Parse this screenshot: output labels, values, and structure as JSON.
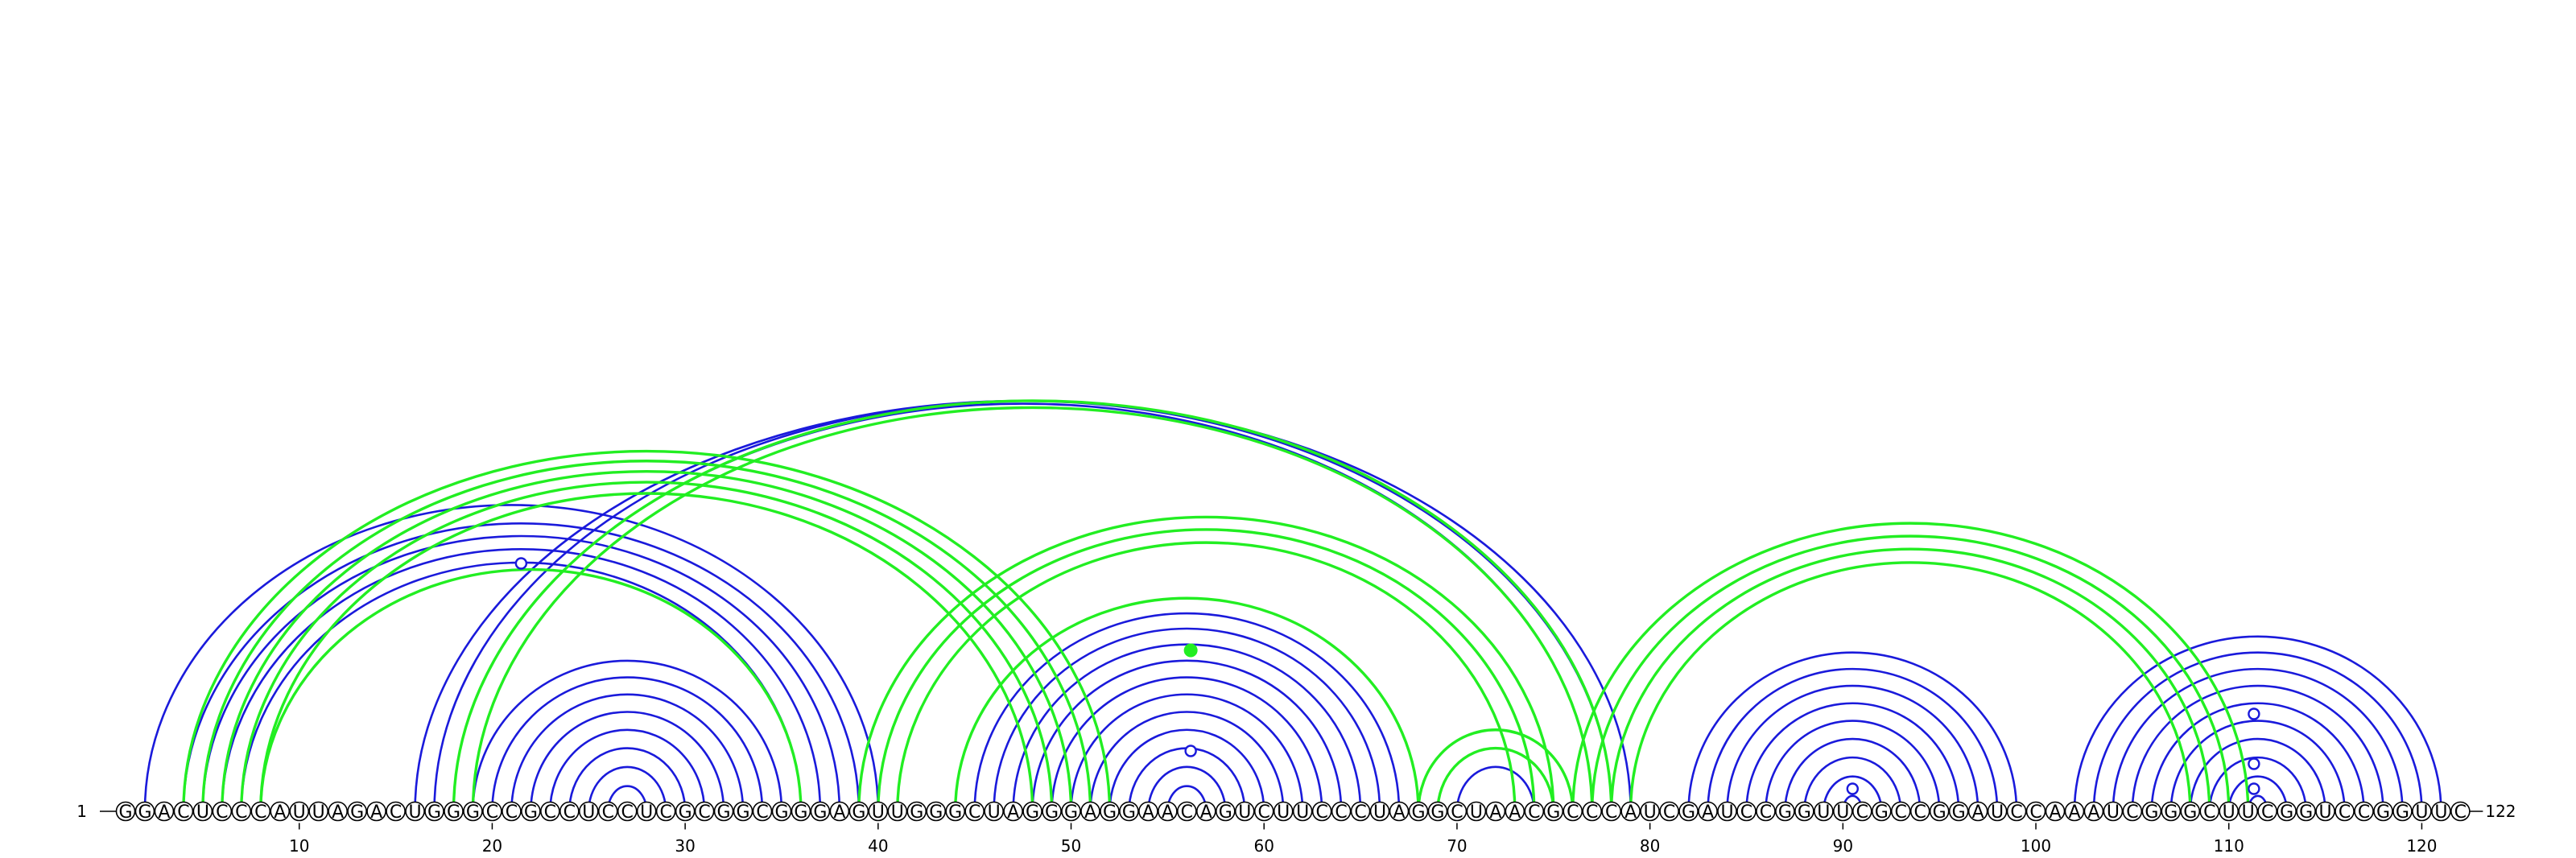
{
  "chart_data": {
    "type": "arc-diagram",
    "sequence": "GGACUCCCAUUAGACUGGGCCGCCUCCUCGCGGCGGGAGUUGGGCUAGGGAGGAACAGUCUUCCCUAGGCUAACGCCCAUCGAUCCGGUUCGCCGGAUCCAAAUCGGGCUUCGGUCCGGUUC",
    "start_label": "1",
    "end_label": "122",
    "ticks": [
      10,
      20,
      30,
      40,
      50,
      60,
      70,
      80,
      90,
      100,
      110,
      120
    ],
    "colors": {
      "blue": "#1a1adb",
      "green": "#22ee22"
    },
    "blue_arcs": [
      [
        2,
        40
      ],
      [
        4,
        39
      ],
      [
        5,
        38
      ],
      [
        6,
        37
      ],
      [
        7,
        36
      ],
      [
        16,
        79
      ],
      [
        17,
        78
      ],
      [
        18,
        77
      ],
      [
        19,
        35
      ],
      [
        20,
        34
      ],
      [
        21,
        33
      ],
      [
        22,
        32
      ],
      [
        23,
        31
      ],
      [
        24,
        30
      ],
      [
        25,
        29
      ],
      [
        26,
        28
      ],
      [
        45,
        67
      ],
      [
        46,
        66
      ],
      [
        47,
        65
      ],
      [
        48,
        64
      ],
      [
        49,
        63
      ],
      [
        50,
        62
      ],
      [
        51,
        61
      ],
      [
        52,
        60
      ],
      [
        53,
        59
      ],
      [
        54,
        58
      ],
      [
        55,
        57
      ],
      [
        69,
        75
      ],
      [
        70,
        74
      ],
      [
        82,
        99
      ],
      [
        83,
        98
      ],
      [
        84,
        97
      ],
      [
        85,
        96
      ],
      [
        86,
        95
      ],
      [
        87,
        94
      ],
      [
        88,
        93
      ],
      [
        89,
        92
      ],
      [
        90,
        91
      ],
      [
        102,
        121
      ],
      [
        103,
        120
      ],
      [
        104,
        119
      ],
      [
        105,
        118
      ],
      [
        106,
        117
      ],
      [
        107,
        116
      ],
      [
        108,
        115
      ],
      [
        109,
        114
      ],
      [
        110,
        113
      ],
      [
        111,
        112
      ]
    ],
    "green_arcs": [
      [
        4,
        52
      ],
      [
        5,
        51
      ],
      [
        6,
        50
      ],
      [
        7,
        49
      ],
      [
        8,
        48
      ],
      [
        8,
        36
      ],
      [
        18,
        78
      ],
      [
        19,
        77
      ],
      [
        39,
        75
      ],
      [
        40,
        74
      ],
      [
        41,
        73
      ],
      [
        44,
        68
      ],
      [
        68,
        76
      ],
      [
        69,
        75
      ],
      [
        76,
        111
      ],
      [
        77,
        110
      ],
      [
        78,
        109
      ],
      [
        79,
        108
      ]
    ],
    "blue_markers": [
      21.5,
      56.2,
      90.5,
      111.3
    ],
    "green_markers": [
      56.2
    ]
  }
}
